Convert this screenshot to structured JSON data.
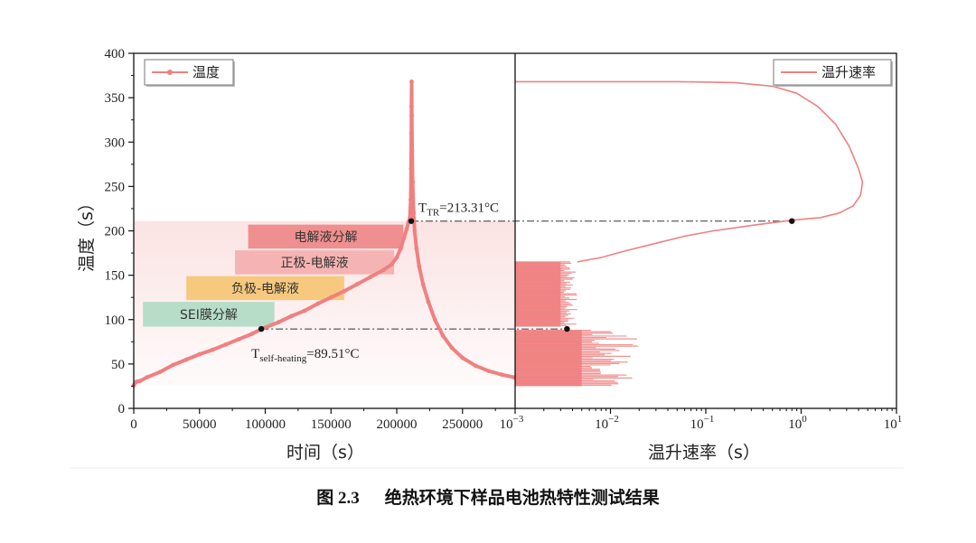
{
  "caption": {
    "number": "图 2.3",
    "title": "绝热环境下样品电池热特性测试结果"
  },
  "colors": {
    "curve": "#f08080",
    "band": "#fbe3e3",
    "sei": "#b7ddc9",
    "anode": "#f7c97f",
    "cathode": "#f6b3b3",
    "electrolyte": "#f08f8f"
  },
  "chart_data": [
    {
      "type": "line",
      "panel": "left",
      "xlabel": "时间（s）",
      "ylabel": "温度（s）",
      "xlim": [
        0,
        290000
      ],
      "ylim": [
        0,
        400
      ],
      "xticks": [
        "0",
        "50000",
        "100000",
        "150000",
        "200000",
        "250000"
      ],
      "xtick_values": [
        0,
        50000,
        100000,
        150000,
        200000,
        250000
      ],
      "yticks": [
        "0",
        "50",
        "100",
        "150",
        "200",
        "250",
        "300",
        "350",
        "400"
      ],
      "ytick_values": [
        0,
        50,
        100,
        150,
        200,
        250,
        300,
        350,
        400
      ],
      "legend": {
        "label": "温度",
        "position": "top-left"
      },
      "series": [
        {
          "name": "温度",
          "points": [
            [
              0,
              26
            ],
            [
              2000,
              30
            ],
            [
              5000,
              31
            ],
            [
              10000,
              35
            ],
            [
              20000,
              41
            ],
            [
              30000,
              49
            ],
            [
              40000,
              55
            ],
            [
              50000,
              61
            ],
            [
              60000,
              66
            ],
            [
              70000,
              72
            ],
            [
              80000,
              78
            ],
            [
              90000,
              84
            ],
            [
              97000,
              89.5
            ],
            [
              110000,
              97
            ],
            [
              120000,
              104
            ],
            [
              130000,
              110
            ],
            [
              140000,
              118
            ],
            [
              150000,
              125
            ],
            [
              160000,
              132
            ],
            [
              170000,
              140
            ],
            [
              180000,
              148
            ],
            [
              190000,
              156
            ],
            [
              196000,
              162
            ],
            [
              200000,
              170
            ],
            [
              203000,
              180
            ],
            [
              205500,
              192
            ],
            [
              207500,
              202
            ],
            [
              209000,
              210
            ],
            [
              210000,
              215
            ],
            [
              210600,
              235
            ],
            [
              210900,
              270
            ],
            [
              211100,
              310
            ],
            [
              211200,
              340
            ],
            [
              211300,
              368
            ],
            [
              211450,
              330
            ],
            [
              211700,
              290
            ],
            [
              212100,
              255
            ],
            [
              212800,
              220
            ],
            [
              213600,
              200
            ],
            [
              215000,
              180
            ],
            [
              217000,
              160
            ],
            [
              220000,
              140
            ],
            [
              224000,
              120
            ],
            [
              229000,
              100
            ],
            [
              235000,
              82
            ],
            [
              242000,
              68
            ],
            [
              250000,
              57
            ],
            [
              260000,
              48
            ],
            [
              270000,
              42
            ],
            [
              280000,
              38
            ],
            [
              289000,
              35
            ]
          ]
        }
      ],
      "stages": [
        {
          "label": "SEI膜分解",
          "range": [
            7000,
            107000
          ],
          "ytop": 120,
          "ybottom": 92,
          "color": "sei"
        },
        {
          "label": "负极-电解液",
          "range": [
            40000,
            160000
          ],
          "ytop": 149,
          "ybottom": 122,
          "color": "anode"
        },
        {
          "label": "正极-电解液",
          "range": [
            77000,
            198000
          ],
          "ytop": 178,
          "ybottom": 151,
          "color": "cathode"
        },
        {
          "label": "电解液分解",
          "range": [
            87000,
            205000
          ],
          "ytop": 207,
          "ybottom": 180,
          "color": "electrolyte"
        }
      ],
      "band": {
        "ymin": 26,
        "ymax": 211
      },
      "annotations": [
        {
          "label": "T",
          "sub": "TR",
          "text": "=213.31°C",
          "x": 211000,
          "y": 211
        },
        {
          "label": "T",
          "sub": "self-heating",
          "text": "=89.51°C",
          "x": 97000,
          "y": 89.5
        }
      ]
    },
    {
      "type": "line",
      "panel": "right",
      "xlabel": "温升速率（s）",
      "xscale": "log",
      "xlim": [
        0.001,
        10
      ],
      "ylim": [
        0,
        400
      ],
      "xticks": [
        {
          "base": "10",
          "exp": "−3"
        },
        {
          "base": "10",
          "exp": "−2"
        },
        {
          "base": "10",
          "exp": "−1"
        },
        {
          "base": "10",
          "exp": "0"
        },
        {
          "base": "10",
          "exp": "1"
        }
      ],
      "xtick_values": [
        0.001,
        0.01,
        0.1,
        1,
        10
      ],
      "legend": {
        "label": "温升速率",
        "position": "top-right"
      },
      "series": [
        {
          "name": "温升速率",
          "points": [
            [
              0.001,
              368
            ],
            [
              0.01,
              368
            ],
            [
              0.05,
              368
            ],
            [
              0.2,
              367
            ],
            [
              0.5,
              363
            ],
            [
              0.9,
              355
            ],
            [
              1.5,
              340
            ],
            [
              2.3,
              320
            ],
            [
              3.2,
              295
            ],
            [
              4,
              270
            ],
            [
              4.4,
              255
            ],
            [
              4.2,
              240
            ],
            [
              3.5,
              228
            ],
            [
              2.5,
              220
            ],
            [
              1.6,
              215
            ],
            [
              0.8,
              212
            ],
            [
              0.3,
              206
            ],
            [
              0.12,
              200
            ],
            [
              0.06,
              194
            ],
            [
              0.03,
              186
            ],
            [
              0.015,
              178
            ],
            [
              0.008,
              170
            ],
            [
              0.0045,
              165
            ]
          ],
          "noisy_bands": [
            {
              "yrange": [
                92,
                165
              ],
              "rate_range": [
                0.003,
                0.0045
              ]
            },
            {
              "yrange": [
                25,
                88
              ],
              "rate_range": [
                0.005,
                0.02
              ]
            }
          ],
          "markers": [
            [
              0.8,
              211
            ],
            [
              0.0035,
              89.5
            ]
          ]
        }
      ]
    }
  ]
}
